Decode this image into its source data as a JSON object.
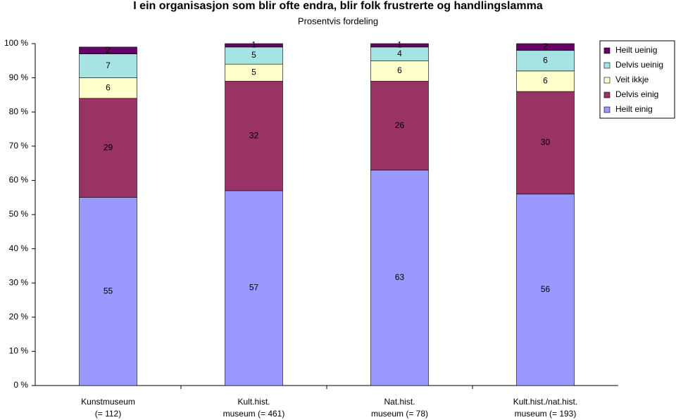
{
  "chart_data": {
    "type": "stacked-bar",
    "title": "I ein organisasjon som blir ofte endra, blir folk frustrerte og handlingslamma",
    "subtitle": "Prosentvis fordeling",
    "categories": [
      [
        "Kunstmuseum",
        "(= 112)"
      ],
      [
        "Kult.hist.",
        "museum (= 461)"
      ],
      [
        "Nat.hist.",
        "museum (= 78)"
      ],
      [
        "Kult.hist./nat.hist.",
        "museum (= 193)"
      ]
    ],
    "series": [
      {
        "name": "Heilt einig",
        "color": "#9999ff",
        "values": [
          55,
          57,
          63,
          56
        ]
      },
      {
        "name": "Delvis einig",
        "color": "#993366",
        "values": [
          29,
          32,
          26,
          30
        ]
      },
      {
        "name": "Veit ikkje",
        "color": "#ffffcc",
        "values": [
          6,
          5,
          6,
          6
        ]
      },
      {
        "name": "Delvis ueinig",
        "color": "#a6e3e3",
        "values": [
          7,
          5,
          4,
          6
        ]
      },
      {
        "name": "Heilt ueinig",
        "color": "#660066",
        "values": [
          2,
          1,
          1,
          2
        ]
      }
    ],
    "ylim": [
      0,
      100
    ],
    "yticks": [
      {
        "value": 0,
        "label": "0 %"
      },
      {
        "value": 10,
        "label": "10 %"
      },
      {
        "value": 20,
        "label": "20 %"
      },
      {
        "value": 30,
        "label": "30 %"
      },
      {
        "value": 40,
        "label": "40 %"
      },
      {
        "value": 50,
        "label": "50 %"
      },
      {
        "value": 60,
        "label": "60 %"
      },
      {
        "value": 70,
        "label": "70 %"
      },
      {
        "value": 80,
        "label": "80 %"
      },
      {
        "value": 90,
        "label": "90 %"
      },
      {
        "value": 100,
        "label": "100 %"
      }
    ],
    "legend": "right"
  }
}
